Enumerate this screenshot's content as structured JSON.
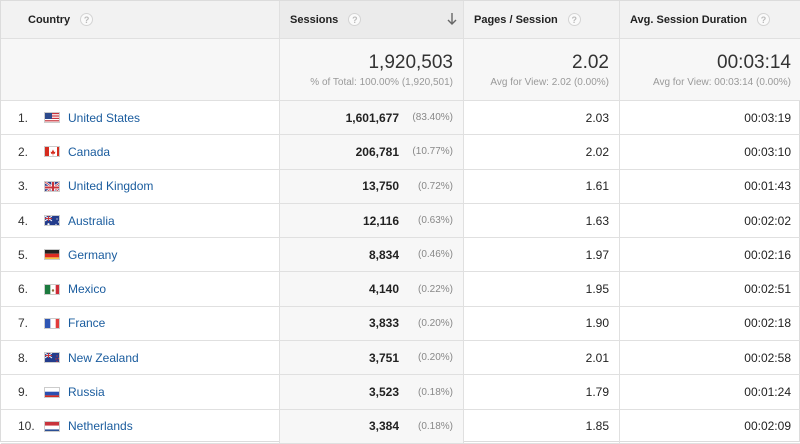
{
  "headers": {
    "country": "Country",
    "sessions": "Sessions",
    "pages_per_session": "Pages / Session",
    "avg_duration": "Avg. Session Duration",
    "help_glyph": "?"
  },
  "totals": {
    "sessions": "1,920,503",
    "sessions_sub": "% of Total: 100.00% (1,920,501)",
    "pages": "2.02",
    "pages_sub": "Avg for View: 2.02 (0.00%)",
    "duration": "00:03:14",
    "duration_sub": "Avg for View: 00:03:14 (0.00%)"
  },
  "rows": [
    {
      "index": "1.",
      "country": "United States",
      "flag": "us-flag-icon",
      "sessions": "1,601,677",
      "pct": "(83.40%)",
      "pages": "2.03",
      "duration": "00:03:19"
    },
    {
      "index": "2.",
      "country": "Canada",
      "flag": "ca-flag-icon",
      "sessions": "206,781",
      "pct": "(10.77%)",
      "pages": "2.02",
      "duration": "00:03:10"
    },
    {
      "index": "3.",
      "country": "United Kingdom",
      "flag": "gb-flag-icon",
      "sessions": "13,750",
      "pct": "(0.72%)",
      "pages": "1.61",
      "duration": "00:01:43"
    },
    {
      "index": "4.",
      "country": "Australia",
      "flag": "au-flag-icon",
      "sessions": "12,116",
      "pct": "(0.63%)",
      "pages": "1.63",
      "duration": "00:02:02"
    },
    {
      "index": "5.",
      "country": "Germany",
      "flag": "de-flag-icon",
      "sessions": "8,834",
      "pct": "(0.46%)",
      "pages": "1.97",
      "duration": "00:02:16"
    },
    {
      "index": "6.",
      "country": "Mexico",
      "flag": "mx-flag-icon",
      "sessions": "4,140",
      "pct": "(0.22%)",
      "pages": "1.95",
      "duration": "00:02:51"
    },
    {
      "index": "7.",
      "country": "France",
      "flag": "fr-flag-icon",
      "sessions": "3,833",
      "pct": "(0.20%)",
      "pages": "1.90",
      "duration": "00:02:18"
    },
    {
      "index": "8.",
      "country": "New Zealand",
      "flag": "nz-flag-icon",
      "sessions": "3,751",
      "pct": "(0.20%)",
      "pages": "2.01",
      "duration": "00:02:58"
    },
    {
      "index": "9.",
      "country": "Russia",
      "flag": "ru-flag-icon",
      "sessions": "3,523",
      "pct": "(0.18%)",
      "pages": "1.79",
      "duration": "00:01:24"
    },
    {
      "index": "10.",
      "country": "Netherlands",
      "flag": "nl-flag-icon",
      "sessions": "3,384",
      "pct": "(0.18%)",
      "pages": "1.85",
      "duration": "00:02:09"
    }
  ],
  "colors": {
    "link": "#1a5c9e",
    "header_bg": "#f2f2f2",
    "totals_bg": "#f7f7f7"
  }
}
